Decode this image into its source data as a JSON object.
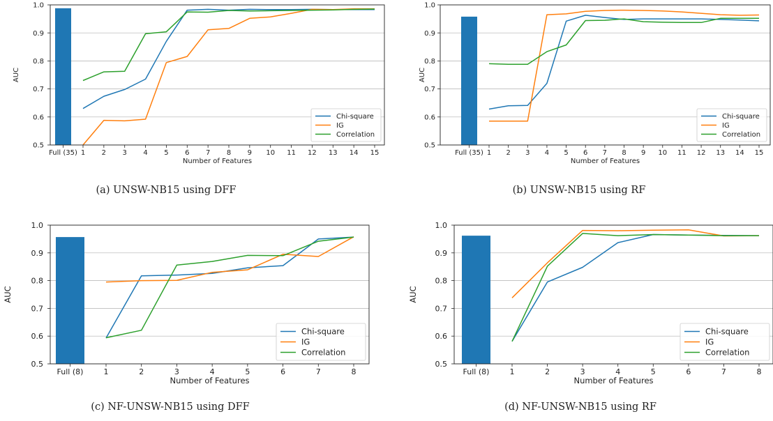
{
  "colors": {
    "chi_square": "#1f77b4",
    "ig": "#ff7f0e",
    "correlation": "#2ca02c",
    "full_bar": "#1f77b4",
    "grid": "#b0b0b0"
  },
  "chart_data": [
    {
      "type": "line",
      "caption": "(a) UNSW-NB15 using DFF",
      "xlabel": "Number of Features",
      "ylabel": "AUC",
      "ylim": [
        0.5,
        1.0
      ],
      "yticks": [
        0.5,
        0.6,
        0.7,
        0.8,
        0.9,
        1.0
      ],
      "ytick_labels": [
        "0.5",
        "0.6",
        "0.7",
        "0.8",
        "0.9",
        "1.0"
      ],
      "grid": "horizontal",
      "legend_position": "lower-right",
      "full_bar": {
        "label": "Full (35)",
        "value": 0.988
      },
      "x": [
        1,
        2,
        3,
        4,
        5,
        6,
        7,
        8,
        9,
        10,
        11,
        12,
        13,
        14,
        15
      ],
      "series": [
        {
          "name": "Chi-square",
          "values": [
            0.63,
            0.674,
            0.698,
            0.735,
            0.87,
            0.981,
            0.984,
            0.981,
            0.984,
            0.983,
            0.983,
            0.984,
            0.983,
            0.983,
            0.983
          ]
        },
        {
          "name": "IG",
          "values": [
            0.5,
            0.588,
            0.586,
            0.592,
            0.794,
            0.816,
            0.911,
            0.916,
            0.952,
            0.957,
            0.97,
            0.984,
            0.983,
            0.986,
            0.986
          ]
        },
        {
          "name": "Correlation",
          "values": [
            0.73,
            0.761,
            0.763,
            0.897,
            0.904,
            0.975,
            0.974,
            0.98,
            0.978,
            0.979,
            0.98,
            0.981,
            0.982,
            0.984,
            0.985
          ]
        }
      ]
    },
    {
      "type": "line",
      "caption": "(b) UNSW-NB15 using RF",
      "xlabel": "Number of Features",
      "ylabel": "AUC",
      "ylim": [
        0.5,
        1.0
      ],
      "yticks": [
        0.5,
        0.6,
        0.7,
        0.8,
        0.9,
        1.0
      ],
      "ytick_labels": [
        "0.5",
        "0.6",
        "0.7",
        "0.8",
        "0.9",
        "1.0"
      ],
      "grid": "horizontal",
      "legend_position": "lower-right",
      "full_bar": {
        "label": "Full (35)",
        "value": 0.958
      },
      "x": [
        1,
        2,
        3,
        4,
        5,
        6,
        7,
        8,
        9,
        10,
        11,
        12,
        13,
        14,
        15
      ],
      "series": [
        {
          "name": "Chi-square",
          "values": [
            0.628,
            0.64,
            0.641,
            0.72,
            0.942,
            0.963,
            0.955,
            0.948,
            0.95,
            0.95,
            0.95,
            0.95,
            0.948,
            0.946,
            0.943
          ]
        },
        {
          "name": "IG",
          "values": [
            0.585,
            0.585,
            0.585,
            0.965,
            0.968,
            0.977,
            0.98,
            0.981,
            0.98,
            0.978,
            0.975,
            0.97,
            0.965,
            0.963,
            0.964
          ]
        },
        {
          "name": "Correlation",
          "values": [
            0.79,
            0.788,
            0.788,
            0.833,
            0.857,
            0.944,
            0.945,
            0.95,
            0.94,
            0.938,
            0.937,
            0.937,
            0.952,
            0.952,
            0.952
          ]
        }
      ]
    },
    {
      "type": "line",
      "caption": "(c) NF-UNSW-NB15 using DFF",
      "xlabel": "Number of Features",
      "ylabel": "AUC",
      "ylim": [
        0.5,
        1.0
      ],
      "yticks": [
        0.5,
        0.6,
        0.7,
        0.8,
        0.9,
        1.0
      ],
      "ytick_labels": [
        "0.5",
        "0.6",
        "0.7",
        "0.8",
        "0.9",
        "1.0"
      ],
      "grid": "horizontal",
      "legend_position": "lower-right",
      "full_bar": {
        "label": "Full (8)",
        "value": 0.957
      },
      "x": [
        1,
        2,
        3,
        4,
        5,
        6,
        7,
        8
      ],
      "series": [
        {
          "name": "Chi-square",
          "values": [
            0.593,
            0.817,
            0.82,
            0.826,
            0.846,
            0.854,
            0.95,
            0.957
          ]
        },
        {
          "name": "IG",
          "values": [
            0.795,
            0.8,
            0.801,
            0.83,
            0.839,
            0.895,
            0.887,
            0.958
          ]
        },
        {
          "name": "Correlation",
          "values": [
            0.594,
            0.621,
            0.856,
            0.869,
            0.891,
            0.89,
            0.942,
            0.957
          ]
        }
      ]
    },
    {
      "type": "line",
      "caption": "(d) NF-UNSW-NB15 using RF",
      "xlabel": "Number of Features",
      "ylabel": "AUC",
      "ylim": [
        0.5,
        1.0
      ],
      "yticks": [
        0.5,
        0.6,
        0.7,
        0.8,
        0.9,
        1.0
      ],
      "ytick_labels": [
        "0.5",
        "0.6",
        "0.7",
        "0.8",
        "0.9",
        "1.0"
      ],
      "grid": "horizontal",
      "legend_position": "lower-right",
      "full_bar": {
        "label": "Full (8)",
        "value": 0.962
      },
      "x": [
        1,
        2,
        3,
        4,
        5,
        6,
        7,
        8
      ],
      "series": [
        {
          "name": "Chi-square",
          "values": [
            0.581,
            0.795,
            0.848,
            0.937,
            0.966,
            0.964,
            0.963,
            0.962
          ]
        },
        {
          "name": "IG",
          "values": [
            0.738,
            0.864,
            0.981,
            0.98,
            0.982,
            0.983,
            0.961,
            0.962
          ]
        },
        {
          "name": "Correlation",
          "values": [
            0.581,
            0.852,
            0.97,
            0.962,
            0.966,
            0.964,
            0.962,
            0.962
          ]
        }
      ]
    }
  ]
}
